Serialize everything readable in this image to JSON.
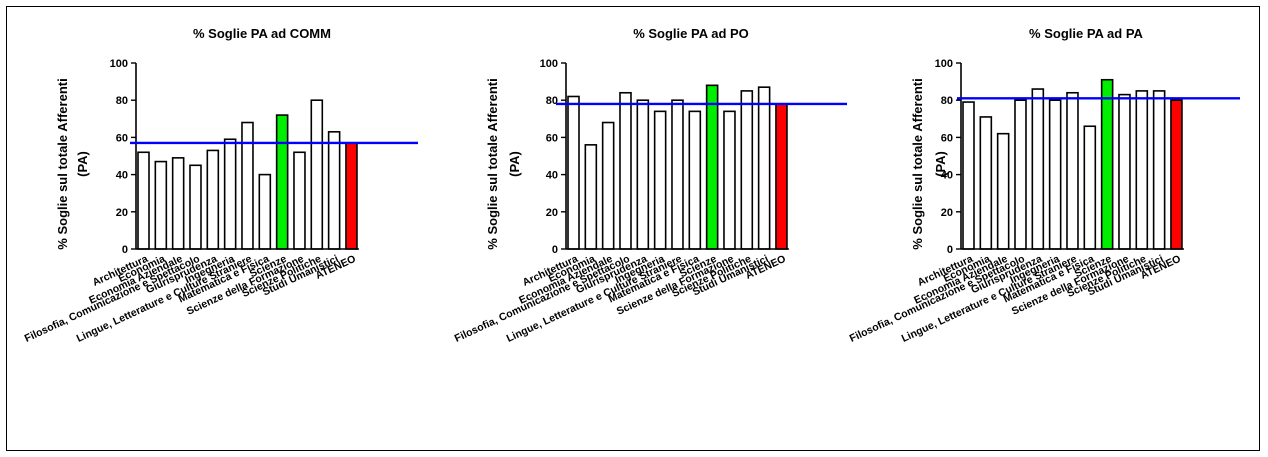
{
  "colors": {
    "bar_default": "#ffffff",
    "bar_highlight": "#00ee00",
    "bar_total": "#ff0000",
    "reference_line": "#0000ff",
    "stroke": "#000000"
  },
  "chart_data": [
    {
      "type": "bar",
      "title": "% Soglie PA ad COMM",
      "ylabel_lines": [
        "% Soglie sul totale Afferenti",
        "(PA)"
      ],
      "ylim": [
        0,
        100
      ],
      "yticks": [
        0,
        20,
        40,
        60,
        80,
        100
      ],
      "categories": [
        "Architettura",
        "Economia",
        "Economia Aziendale",
        "Filosofia, Comunicazione e Spettacolo",
        "Giurisprudenza",
        "Ingegneria",
        "Lingue, Letterature e Culture Straniere",
        "Matematica e Fisica",
        "Scienze",
        "Scienze della Formazione",
        "Scienze Politiche",
        "Studi Umanistici",
        "ATENEO"
      ],
      "values": [
        52,
        47,
        49,
        45,
        53,
        59,
        68,
        40,
        72,
        52,
        80,
        63,
        57
      ],
      "bar_colors": [
        "bar_default",
        "bar_default",
        "bar_default",
        "bar_default",
        "bar_default",
        "bar_default",
        "bar_default",
        "bar_default",
        "bar_highlight",
        "bar_default",
        "bar_default",
        "bar_default",
        "bar_total"
      ],
      "reference_line": 57,
      "grid": false,
      "legend": "none"
    },
    {
      "type": "bar",
      "title": "% Soglie PA ad PO",
      "ylabel_lines": [
        "% Soglie sul totale Afferenti",
        "(PA)"
      ],
      "ylim": [
        0,
        100
      ],
      "yticks": [
        0,
        20,
        40,
        60,
        80,
        100
      ],
      "categories": [
        "Architettura",
        "Economia",
        "Economia Aziendale",
        "Filosofia, Comunicazione e Spettacolo",
        "Giurisprudenza",
        "Ingegneria",
        "Lingue, Letterature e Culture Straniere",
        "Matematica e Fisica",
        "Scienze",
        "Scienze della Formazione",
        "Scienze Politiche",
        "Studi Umanistici",
        "ATENEO"
      ],
      "values": [
        82,
        56,
        68,
        84,
        80,
        74,
        80,
        74,
        88,
        74,
        85,
        87,
        78
      ],
      "bar_colors": [
        "bar_default",
        "bar_default",
        "bar_default",
        "bar_default",
        "bar_default",
        "bar_default",
        "bar_default",
        "bar_default",
        "bar_highlight",
        "bar_default",
        "bar_default",
        "bar_default",
        "bar_total"
      ],
      "reference_line": 78,
      "grid": false,
      "legend": "none"
    },
    {
      "type": "bar",
      "title": "% Soglie PA ad PA",
      "ylabel_lines": [
        "% Soglie sul totale Afferenti",
        "(PA)"
      ],
      "ylim": [
        0,
        100
      ],
      "yticks": [
        0,
        20,
        40,
        60,
        80,
        100
      ],
      "categories": [
        "Architettura",
        "Economia",
        "Economia Aziendale",
        "Filosofia, Comunicazione e Spettacolo",
        "Giurisprudenza",
        "Ingegneria",
        "Lingue, Letterature e Culture Straniere",
        "Matematica e Fisica",
        "Scienze",
        "Scienze della Formazione",
        "Scienze Politiche",
        "Studi Umanistici",
        "ATENEO"
      ],
      "values": [
        79,
        71,
        62,
        80,
        86,
        80,
        84,
        66,
        91,
        83,
        85,
        85,
        80
      ],
      "bar_colors": [
        "bar_default",
        "bar_default",
        "bar_default",
        "bar_default",
        "bar_default",
        "bar_default",
        "bar_default",
        "bar_default",
        "bar_highlight",
        "bar_default",
        "bar_default",
        "bar_default",
        "bar_total"
      ],
      "reference_line": 81,
      "grid": false,
      "legend": "none"
    }
  ]
}
